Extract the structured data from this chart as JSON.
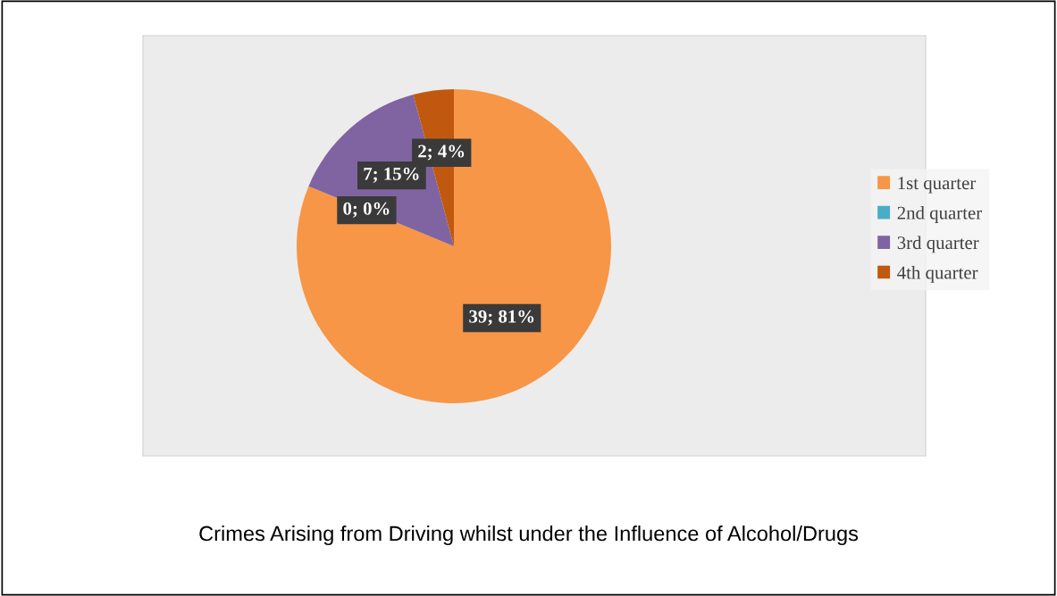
{
  "chart_data": {
    "type": "pie",
    "title": "Crimes Arising from Driving whilst under the Influence of Alcohol/Drugs",
    "categories": [
      "1st quarter",
      "2nd quarter",
      "3rd quarter",
      "4th quarter"
    ],
    "values": [
      39,
      0,
      7,
      2
    ],
    "value_labels": [
      "39; 81%",
      "0; 0%",
      "7; 15%",
      "2; 4%"
    ],
    "colors": [
      "#f79646",
      "#4bacc6",
      "#8064a2",
      "#c0590f"
    ],
    "legend": "right"
  }
}
